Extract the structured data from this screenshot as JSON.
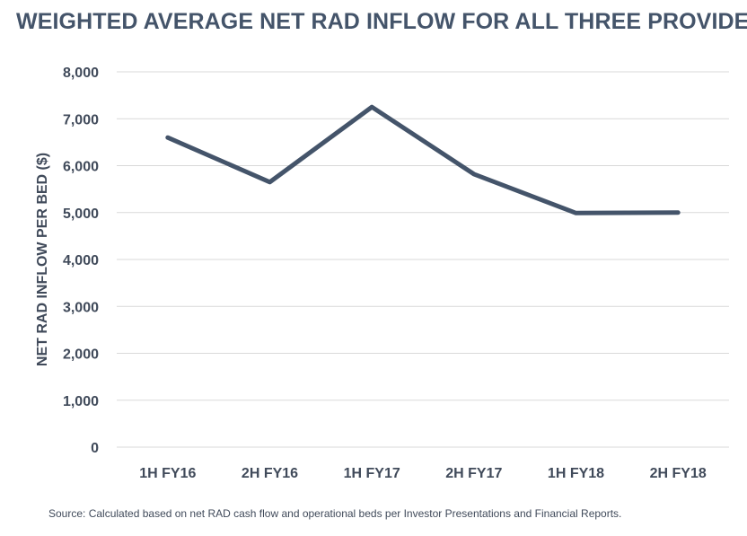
{
  "title": "WEIGHTED AVERAGE NET RAD INFLOW FOR ALL THREE PROVIDERS",
  "source": "Source: Calculated based on net RAD cash flow and operational beds per Investor Presentations and Financial Reports.",
  "colors": {
    "line": "#44546a",
    "text": "#404a5a",
    "grid": "#d9d9d9",
    "title": "#44546a"
  },
  "chart_data": {
    "type": "line",
    "title": "WEIGHTED AVERAGE NET RAD INFLOW FOR ALL THREE PROVIDERS",
    "xlabel": "",
    "ylabel": "NET RAD INFLOW PER BED ($)",
    "categories": [
      "1H FY16",
      "2H FY16",
      "1H FY17",
      "2H FY17",
      "1H FY18",
      "2H FY18"
    ],
    "series": [
      {
        "values": [
          6600,
          5650,
          7250,
          5820,
          4990,
          5000
        ]
      }
    ],
    "ylim": [
      0,
      8000
    ],
    "yticks": [
      0,
      1000,
      2000,
      3000,
      4000,
      5000,
      6000,
      7000,
      8000
    ],
    "ytick_labels": [
      "0",
      "1,000",
      "2,000",
      "3,000",
      "4,000",
      "5,000",
      "6,000",
      "7,000",
      "8,000"
    ],
    "grid": true,
    "legend": "none"
  }
}
